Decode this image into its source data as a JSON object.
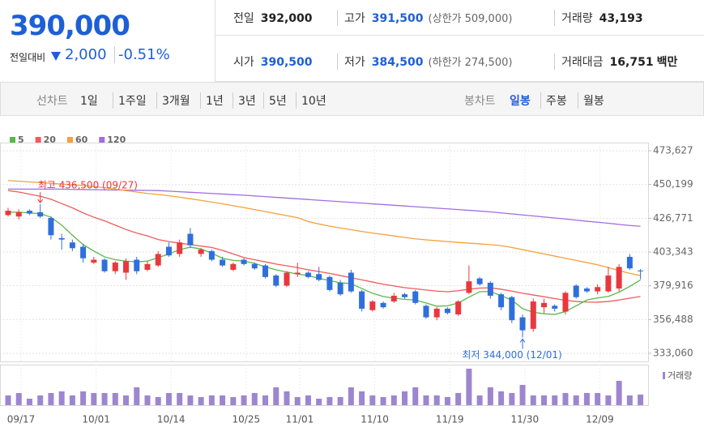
{
  "header": {
    "price": "390,000",
    "change_label": "전일대비",
    "change": "2,000",
    "change_pct": "-0.51%",
    "stats": [
      {
        "label": "전일",
        "value": "392,000",
        "color": "#222222"
      },
      {
        "label": "고가",
        "value": "391,500",
        "note": "(상한가 509,000)",
        "color": "#1e5fd6"
      },
      {
        "label": "거래량",
        "value": "43,193",
        "color": "#222222"
      },
      {
        "label": "시가",
        "value": "390,500",
        "color": "#1e5fd6"
      },
      {
        "label": "저가",
        "value": "384,500",
        "note": "(하한가 274,500)",
        "color": "#1e5fd6"
      },
      {
        "label": "거래대금",
        "value": "16,751",
        "unit": "백만",
        "color": "#222222"
      }
    ]
  },
  "tabs": {
    "line": {
      "label": "선차트",
      "items": [
        "1일",
        "1주일",
        "3개월",
        "1년",
        "3년",
        "5년",
        "10년"
      ]
    },
    "candle": {
      "label": "봉차트",
      "items": [
        "일봉",
        "주봉",
        "월봉"
      ],
      "selected": 0
    }
  },
  "chart_data": {
    "type": "candlestick",
    "categories": [
      "09/17",
      null,
      null,
      null,
      null,
      null,
      null,
      "10/01",
      null,
      null,
      null,
      null,
      null,
      null,
      "10/14",
      null,
      null,
      null,
      null,
      null,
      null,
      "10/25",
      null,
      null,
      null,
      null,
      "11/01",
      null,
      null,
      null,
      null,
      null,
      null,
      "11/10",
      null,
      null,
      null,
      null,
      null,
      null,
      "11/19",
      null,
      null,
      null,
      null,
      null,
      null,
      "11/30",
      null,
      null,
      null,
      null,
      null,
      null,
      "12/09",
      null,
      null,
      null,
      null,
      null
    ],
    "open": [
      429000,
      428000,
      432000,
      431000,
      427000,
      413000,
      410000,
      407000,
      396000,
      398000,
      390000,
      389000,
      398000,
      391000,
      394000,
      407000,
      402000,
      416000,
      402000,
      404000,
      398000,
      391000,
      398000,
      395000,
      394000,
      387000,
      380000,
      388000,
      389000,
      388000,
      386000,
      382000,
      389000,
      376000,
      363000,
      368000,
      369000,
      374000,
      376000,
      366000,
      358000,
      364000,
      360000,
      375000,
      385000,
      382000,
      374000,
      372000,
      358000,
      350000,
      365000,
      366000,
      362000,
      380000,
      378000,
      376000,
      376000,
      378000,
      400000,
      390500
    ],
    "high": [
      434000,
      433000,
      433000,
      436500,
      428000,
      416000,
      412000,
      409000,
      400000,
      399000,
      397000,
      399000,
      400000,
      397000,
      404000,
      410000,
      412000,
      420000,
      406000,
      405000,
      400000,
      396000,
      399000,
      396000,
      395000,
      388000,
      390000,
      396000,
      390000,
      393000,
      387000,
      384000,
      391000,
      377000,
      370000,
      369000,
      375000,
      375000,
      377000,
      367000,
      365000,
      365000,
      370000,
      394000,
      386000,
      383000,
      375000,
      373000,
      360000,
      371000,
      371000,
      367000,
      376000,
      381000,
      379000,
      381000,
      393000,
      395000,
      402000,
      391500
    ],
    "low": [
      428000,
      426000,
      429000,
      427000,
      412000,
      405000,
      404000,
      396000,
      395000,
      389000,
      388000,
      384000,
      388000,
      390000,
      393000,
      400000,
      400000,
      406000,
      400000,
      397000,
      393000,
      390000,
      394000,
      391000,
      385000,
      379000,
      379000,
      386000,
      385000,
      383000,
      376000,
      373000,
      375000,
      362000,
      362000,
      364000,
      368000,
      371000,
      367000,
      357000,
      356000,
      360000,
      359000,
      374000,
      380000,
      371000,
      363000,
      354000,
      344000,
      348000,
      361000,
      362000,
      360000,
      371000,
      375000,
      374000,
      375000,
      376000,
      391000,
      384500
    ],
    "close": [
      432000,
      431000,
      430000,
      428000,
      415000,
      412000,
      406000,
      399000,
      398000,
      390000,
      396000,
      397000,
      390000,
      395000,
      402000,
      401000,
      410000,
      408000,
      405000,
      398000,
      394000,
      395000,
      395000,
      392000,
      386000,
      380000,
      389000,
      389000,
      386000,
      384000,
      377000,
      374000,
      376000,
      364000,
      369000,
      365000,
      373000,
      372000,
      368000,
      358000,
      364000,
      361000,
      369000,
      383000,
      381000,
      373000,
      365000,
      356000,
      349000,
      369000,
      368000,
      364000,
      375000,
      372000,
      376000,
      379000,
      387000,
      393000,
      392000,
      390000
    ],
    "up_color": "#e8383d",
    "down_color": "#2f6fdc",
    "series": [
      {
        "name": "5",
        "color": "#59b84a",
        "values": [
          431000,
          431000,
          430500,
          430000,
          427500,
          422000,
          415000,
          408500,
          404000,
          400000,
          398000,
          397000,
          396500,
          397000,
          399400,
          402000,
          405000,
          406700,
          405500,
          402500,
          399000,
          397500,
          397000,
          395500,
          393000,
          391000,
          389500,
          388000,
          387000,
          385000,
          383500,
          382000,
          381400,
          378000,
          374700,
          372500,
          371300,
          370500,
          370000,
          368000,
          365700,
          366000,
          368000,
          372000,
          375800,
          376000,
          373000,
          370000,
          364000,
          361500,
          360500,
          360000,
          362000,
          366000,
          370000,
          371500,
          372500,
          375500,
          379500,
          384000
        ]
      },
      {
        "name": "20",
        "color": "#ef5b5b",
        "values": [
          446000,
          445000,
          443500,
          442000,
          440000,
          437000,
          434000,
          430500,
          427500,
          425000,
          422000,
          419000,
          416500,
          414500,
          412000,
          410600,
          409500,
          408500,
          407500,
          406500,
          404500,
          402000,
          399500,
          398000,
          396500,
          395000,
          393800,
          392500,
          391000,
          389800,
          388500,
          387000,
          385500,
          384000,
          382500,
          381000,
          379800,
          378600,
          377800,
          377000,
          376200,
          375800,
          376500,
          377500,
          378300,
          378500,
          377500,
          376200,
          374700,
          373500,
          372300,
          371000,
          369800,
          369000,
          368600,
          368500,
          369000,
          370000,
          371300,
          372500
        ]
      },
      {
        "name": "60",
        "color": "#f5a03a",
        "values": [
          453000,
          452500,
          452000,
          451500,
          451000,
          450500,
          450000,
          449500,
          448800,
          448000,
          447000,
          446000,
          445000,
          444000,
          443300,
          442400,
          441400,
          440300,
          439200,
          438000,
          436800,
          435500,
          434200,
          432800,
          431400,
          430000,
          428600,
          427200,
          424500,
          422800,
          421300,
          420000,
          418800,
          417600,
          416500,
          415500,
          414500,
          413500,
          412500,
          411800,
          411200,
          410600,
          410000,
          409500,
          409000,
          408400,
          407800,
          406500,
          405000,
          403500,
          402000,
          400500,
          399000,
          397500,
          396000,
          394500,
          392500,
          390500,
          388500,
          387000
        ]
      },
      {
        "name": "120",
        "color": "#a26ddf",
        "values": [
          447000,
          447000,
          447000,
          447000,
          447000,
          447000,
          446800,
          446700,
          446600,
          446500,
          446400,
          446300,
          446200,
          446100,
          446000,
          445600,
          445200,
          444800,
          444400,
          444000,
          443600,
          443200,
          442800,
          442300,
          441800,
          441300,
          440800,
          440300,
          439800,
          439300,
          438800,
          438300,
          437800,
          437300,
          436800,
          436300,
          435800,
          435300,
          434800,
          434300,
          433800,
          433300,
          432800,
          432300,
          431800,
          431200,
          430500,
          429800,
          429100,
          428400,
          427700,
          427000,
          426300,
          425500,
          424700,
          424000,
          423300,
          422500,
          421800,
          421200
        ]
      }
    ],
    "volume": {
      "name": "거래량",
      "color": "#9d86cf",
      "values": [
        39600,
        49500,
        26400,
        39600,
        49500,
        56100,
        39600,
        56100,
        49500,
        49500,
        49500,
        39600,
        72600,
        39600,
        33000,
        49500,
        49500,
        39600,
        33000,
        39600,
        39600,
        33000,
        39600,
        49500,
        39600,
        72600,
        56100,
        33000,
        39600,
        26400,
        33000,
        33000,
        72600,
        56100,
        39600,
        33000,
        39600,
        56100,
        72600,
        39600,
        39600,
        33000,
        49500,
        148500,
        39600,
        72600,
        56100,
        49500,
        82500,
        39600,
        39600,
        39600,
        49500,
        39600,
        49500,
        49500,
        39600,
        99000,
        39600,
        43193
      ]
    },
    "ylim": [
      327400,
      479300
    ],
    "yticks": [
      {
        "value": 473627,
        "label": "473,627"
      },
      {
        "value": 450199,
        "label": "450,199"
      },
      {
        "value": 426771,
        "label": "426,771"
      },
      {
        "value": 403343,
        "label": "403,343"
      },
      {
        "value": 379916,
        "label": "379,916"
      },
      {
        "value": 356488,
        "label": "356,488"
      },
      {
        "value": 333060,
        "label": "333,060"
      }
    ],
    "grid": true,
    "annotations": [
      {
        "text": "최고 436,500 (09/27)",
        "value": 436500,
        "color": "#e8383d"
      },
      {
        "text": "최저 344,000 (12/01)",
        "value": 344000,
        "color": "#2f6fdc"
      }
    ]
  }
}
